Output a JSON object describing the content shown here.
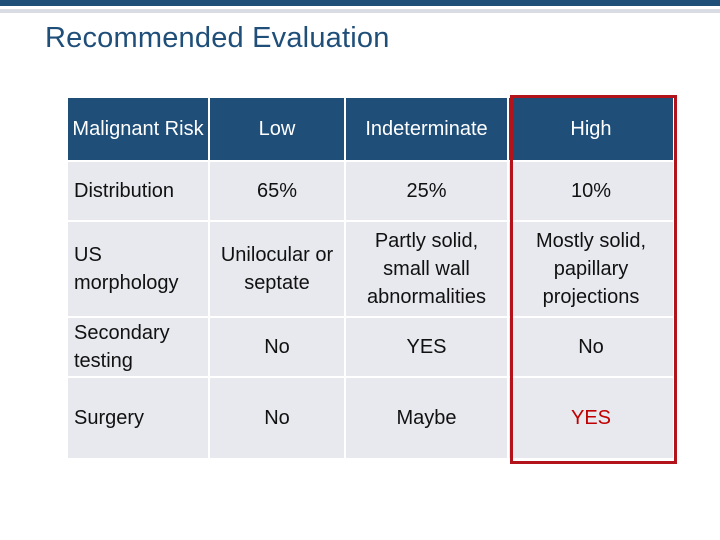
{
  "title": "Recommended Evaluation",
  "table": {
    "header": [
      "Malignant Risk",
      "Low",
      "Indeterminate",
      "High"
    ],
    "rows": [
      [
        "Distribution",
        "65%",
        "25%",
        "10%"
      ],
      [
        "US morphology",
        "Unilocular or septate",
        "Partly solid, small wall abnormalities",
        "Mostly solid, papillary projections"
      ],
      [
        "Secondary testing",
        "No",
        "YES",
        "No"
      ],
      [
        "Surgery",
        "No",
        "Maybe",
        "YES"
      ]
    ]
  },
  "colors": {
    "header_bg": "#1f4e79",
    "cell_bg": "#e7e9ef",
    "highlight_border": "#b3141c",
    "emphasis_text": "#c00000"
  }
}
